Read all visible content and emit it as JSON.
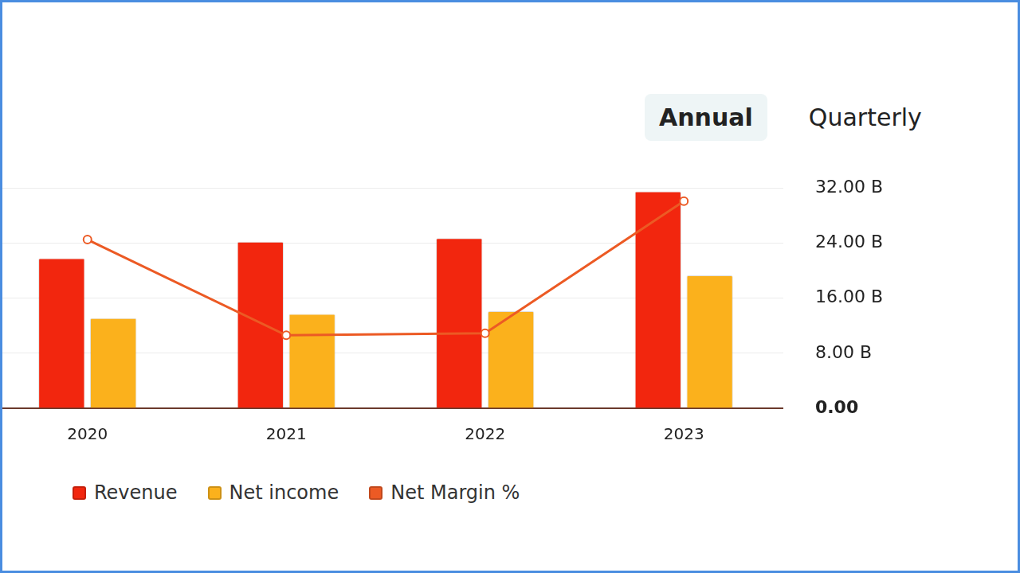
{
  "controls": {
    "options": [
      "Annual",
      "Quarterly"
    ],
    "selected": "Annual"
  },
  "chart_data": {
    "type": "bar",
    "categories": [
      "2020",
      "2021",
      "2022",
      "2023"
    ],
    "series": [
      {
        "name": "Revenue",
        "color": "#f2260e",
        "values": [
          21.8,
          24.2,
          24.7,
          31.5
        ]
      },
      {
        "name": "Net income",
        "color": "#fbb11c",
        "values": [
          13.1,
          13.7,
          14.1,
          19.3
        ]
      },
      {
        "name": "Net Margin %",
        "type": "line",
        "color": "#ec5a24",
        "marker": "circle",
        "values": [
          24.5,
          10.6,
          10.9,
          30.1
        ]
      }
    ],
    "ylim": [
      0,
      32
    ],
    "yticks": [
      {
        "value": 0,
        "label": "0.00"
      },
      {
        "value": 8,
        "label": "8.00 B"
      },
      {
        "value": 16,
        "label": "16.00 B"
      },
      {
        "value": 24,
        "label": "24.00 B"
      },
      {
        "value": 32,
        "label": "32.00 B"
      }
    ],
    "grid": true,
    "legend": "bottom-left"
  }
}
